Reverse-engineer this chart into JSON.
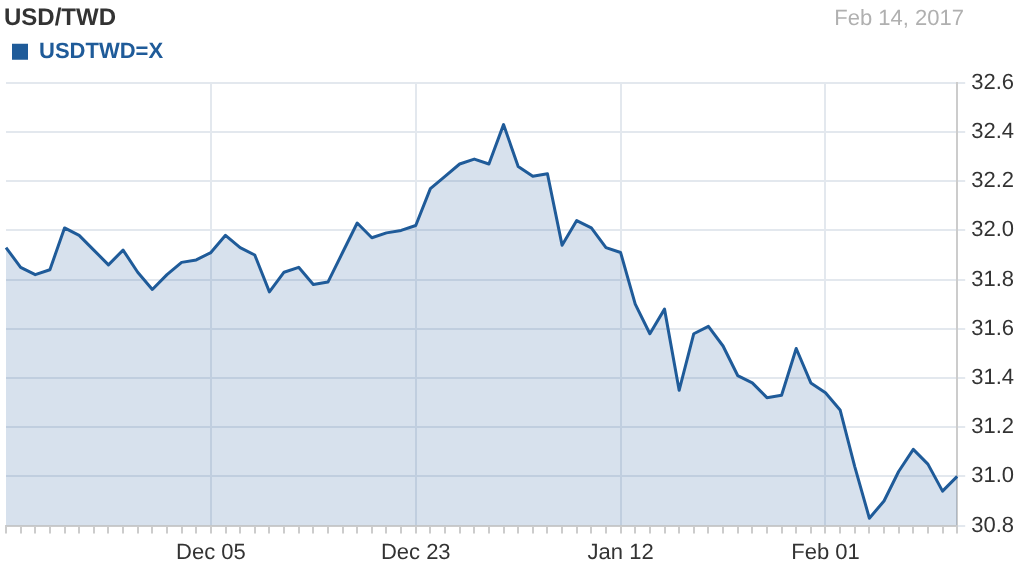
{
  "chart_data": {
    "type": "area",
    "title": "USD/TWD",
    "annotations": [
      "Feb 14, 2017"
    ],
    "categories": [
      null,
      null,
      null,
      null,
      null,
      null,
      null,
      null,
      null,
      null,
      null,
      null,
      null,
      null,
      "Dec 05",
      null,
      null,
      null,
      null,
      null,
      null,
      null,
      null,
      null,
      null,
      null,
      null,
      null,
      "Dec 23",
      null,
      null,
      null,
      null,
      null,
      null,
      null,
      null,
      null,
      null,
      null,
      null,
      null,
      "Jan 12",
      null,
      null,
      null,
      null,
      null,
      null,
      null,
      null,
      null,
      null,
      null,
      null,
      null,
      "Feb 01",
      null,
      null,
      null,
      null,
      null,
      null,
      null,
      null,
      null
    ],
    "series": [
      {
        "name": "USDTWD=X",
        "color": "#1f5b99",
        "values": [
          31.93,
          31.85,
          31.82,
          31.84,
          32.01,
          31.98,
          31.92,
          31.86,
          31.92,
          31.83,
          31.76,
          31.82,
          31.87,
          31.88,
          31.91,
          31.98,
          31.93,
          31.9,
          31.75,
          31.83,
          31.85,
          31.78,
          31.79,
          31.91,
          32.03,
          31.97,
          31.99,
          32.0,
          32.02,
          32.17,
          32.22,
          32.27,
          32.29,
          32.27,
          32.43,
          32.26,
          32.22,
          32.23,
          31.94,
          32.04,
          32.01,
          31.93,
          31.91,
          31.7,
          31.58,
          31.68,
          31.35,
          31.58,
          31.61,
          31.53,
          31.41,
          31.38,
          31.32,
          31.33,
          31.52,
          31.38,
          31.34,
          31.27,
          31.04,
          30.83,
          30.9,
          31.02,
          31.11,
          31.05,
          30.94,
          31.0
        ]
      }
    ],
    "ylim": [
      30.8,
      32.6
    ],
    "yticks": [
      {
        "value": 30.8,
        "label": "30.8"
      },
      {
        "value": 31,
        "label": "31.0"
      },
      {
        "value": 31.2,
        "label": "31.2"
      },
      {
        "value": 31.4,
        "label": "31.4"
      },
      {
        "value": 31.6,
        "label": "31.6"
      },
      {
        "value": 31.8,
        "label": "31.8"
      },
      {
        "value": 32,
        "label": "32.0"
      },
      {
        "value": 32.2,
        "label": "32.2"
      },
      {
        "value": 32.4,
        "label": "32.4"
      },
      {
        "value": 32.6,
        "label": "32.6"
      }
    ],
    "grid": true,
    "legend": "top left",
    "marker": "none",
    "line_style": "solid"
  }
}
